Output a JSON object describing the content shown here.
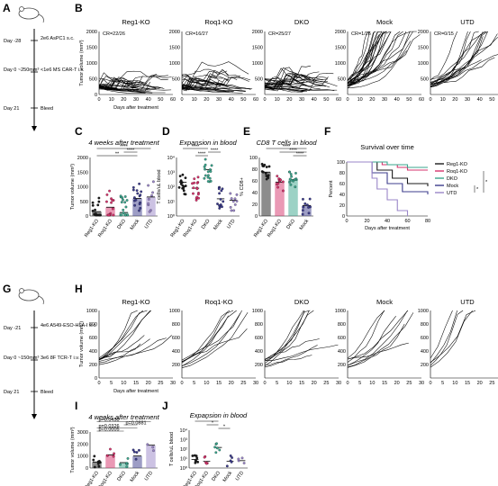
{
  "panels": [
    "A",
    "B",
    "C",
    "D",
    "E",
    "F",
    "G",
    "H",
    "I",
    "J"
  ],
  "timeline_a": [
    {
      "day": "Day -28",
      "event": "2e6 AsPC1 s.c."
    },
    {
      "day": "Day 0 ~250mm³",
      "event": "<1e6 MS CAR-T i.v."
    },
    {
      "day": "Day 21",
      "event": "Bleed"
    }
  ],
  "timeline_g": [
    {
      "day": "Day -21",
      "event": "4e6 A549-ESO-HLA-I s.c."
    },
    {
      "day": "Day 0 ~150mm³",
      "event": "3e6 8F TCR-T i.v."
    },
    {
      "day": "Day 21",
      "event": "Bleed"
    }
  ],
  "b_titles": [
    "Reg1-KO",
    "Roq1-KO",
    "DKO",
    "Mock",
    "UTD"
  ],
  "b_cr": [
    "CR=22/26",
    "CR=16/27",
    "CR=25/27",
    "CR=1/26",
    "CR=0/15"
  ],
  "b_yticks": [
    "0",
    "500",
    "1000",
    "1500",
    "2000"
  ],
  "b_xticks": [
    "0",
    "10",
    "20",
    "30",
    "40",
    "50",
    "60"
  ],
  "b_ylabel": "Tumor volume (mm³)",
  "b_xlabel": "Days after treatment",
  "c_title": "4 weeks after treatment",
  "c_ylabel": "Tumor volume (mm³)",
  "c_yticks": [
    "0",
    "500",
    "1000",
    "1500",
    "2000"
  ],
  "c_sig": [
    "****",
    "**",
    "****"
  ],
  "d_title": "Expansion in blood",
  "d_ylabel": "T cells/uL blood",
  "d_yticks": [
    "10⁰",
    "10¹",
    "10²",
    "10³",
    "10⁴"
  ],
  "d_sig": [
    "****",
    "****",
    "****"
  ],
  "e_title": "CD8 T cells in blood",
  "e_ylabel": "% CD8+",
  "e_yticks": [
    "0",
    "20",
    "40",
    "60",
    "80",
    "100"
  ],
  "e_sig": [
    "****",
    "****",
    "****"
  ],
  "f_title": "Survival over time",
  "f_ylabel": "Percent",
  "f_xlabel": "Days after treatment",
  "f_yticks": [
    "0",
    "20",
    "40",
    "60",
    "80",
    "100"
  ],
  "f_xticks": [
    "0",
    "20",
    "40",
    "60",
    "80"
  ],
  "f_legend": [
    "Reg1-KO",
    "Roq1-KO",
    "DKO",
    "Mock",
    "UTD"
  ],
  "f_sig": "*",
  "groups_cde": [
    "Reg1-KO",
    "Roq1-KO",
    "DKO",
    "Mock",
    "UTD"
  ],
  "groups_e": [
    "Reg1-KO",
    "Roq1-KO",
    "DKO",
    "Mock"
  ],
  "h_titles": [
    "Reg1-KO",
    "Roq1-KO",
    "DKO",
    "Mock",
    "UTD"
  ],
  "h_yticks": [
    "0",
    "200",
    "400",
    "600",
    "800",
    "1000"
  ],
  "h_xticks": [
    "0",
    "5",
    "10",
    "15",
    "20",
    "25",
    "30"
  ],
  "h_ylabel": "Tumor volume (mm³)",
  "h_xlabel": "Days after treatment",
  "i_title": "4 weeks after treatment",
  "i_ylabel": "Tumor volume (mm³)",
  "i_yticks": [
    "0",
    "1000",
    "2000",
    "3000"
  ],
  "i_pvals": [
    "p=0.0450",
    "p=0.0326",
    "p=0.0005",
    "p=0.0881"
  ],
  "j_title": "Expansion in blood",
  "j_ylabel": "T cells/uL blood",
  "j_yticks": [
    "10⁰",
    "10¹",
    "10²",
    "10³",
    "10⁴"
  ],
  "j_sig": [
    "*",
    "*",
    "*"
  ],
  "groups_ij": [
    "Reg1-KO",
    "Roq1-KO",
    "DKO",
    "Mock",
    "UTD"
  ],
  "colors": {
    "reg1": "#1a1a1a",
    "roq1": "#d6336c",
    "dko": "#3aa58c",
    "mock": "#3c3c8c",
    "utd": "#9a86c8"
  },
  "chart_data": [
    {
      "type": "bar",
      "title": "4 weeks after treatment",
      "categories": [
        "Reg1-KO",
        "Roq1-KO",
        "DKO",
        "Mock",
        "UTD"
      ],
      "values": [
        150,
        300,
        120,
        600,
        650
      ],
      "ylabel": "Tumor volume (mm³)",
      "ylim": [
        0,
        2000
      ]
    },
    {
      "type": "scatter",
      "title": "Expansion in blood",
      "categories": [
        "Reg1-KO",
        "Roq1-KO",
        "DKO",
        "Mock",
        "UTD"
      ],
      "values": [
        200,
        80,
        1500,
        15,
        12
      ],
      "ylabel": "T cells/uL blood"
    },
    {
      "type": "bar",
      "title": "CD8 T cells in blood",
      "categories": [
        "Reg1-KO",
        "Roq1-KO",
        "DKO",
        "Mock"
      ],
      "values": [
        75,
        58,
        62,
        18
      ],
      "ylabel": "% CD8+",
      "ylim": [
        0,
        100
      ]
    },
    {
      "type": "line",
      "title": "Survival over time",
      "ylabel": "Percent",
      "xlabel": "Days after treatment",
      "series": [
        {
          "name": "Reg1-KO",
          "x": [
            0,
            30,
            45,
            60,
            80
          ],
          "values": [
            100,
            85,
            70,
            60,
            55
          ]
        },
        {
          "name": "Roq1-KO",
          "x": [
            0,
            35,
            50,
            60,
            80
          ],
          "values": [
            100,
            95,
            90,
            85,
            85
          ]
        },
        {
          "name": "DKO",
          "x": [
            0,
            40,
            60,
            80
          ],
          "values": [
            100,
            95,
            90,
            90
          ]
        },
        {
          "name": "Mock",
          "x": [
            0,
            25,
            40,
            55,
            80
          ],
          "values": [
            100,
            80,
            60,
            45,
            40
          ]
        },
        {
          "name": "UTD",
          "x": [
            0,
            25,
            30,
            40,
            50,
            60
          ],
          "values": [
            100,
            70,
            50,
            30,
            10,
            0
          ]
        }
      ]
    },
    {
      "type": "bar",
      "title": "4 weeks after treatment",
      "categories": [
        "Reg1-KO",
        "Roq1-KO",
        "DKO",
        "Mock",
        "UTD"
      ],
      "values": [
        500,
        1100,
        450,
        1000,
        1900
      ],
      "ylabel": "Tumor volume (mm³)",
      "ylim": [
        0,
        3000
      ]
    },
    {
      "type": "scatter",
      "title": "Expansion in blood",
      "categories": [
        "Reg1-KO",
        "Roq1-KO",
        "DKO",
        "Mock",
        "UTD"
      ],
      "values": [
        8,
        5,
        150,
        5,
        6
      ],
      "ylabel": "T cells/uL blood"
    }
  ]
}
